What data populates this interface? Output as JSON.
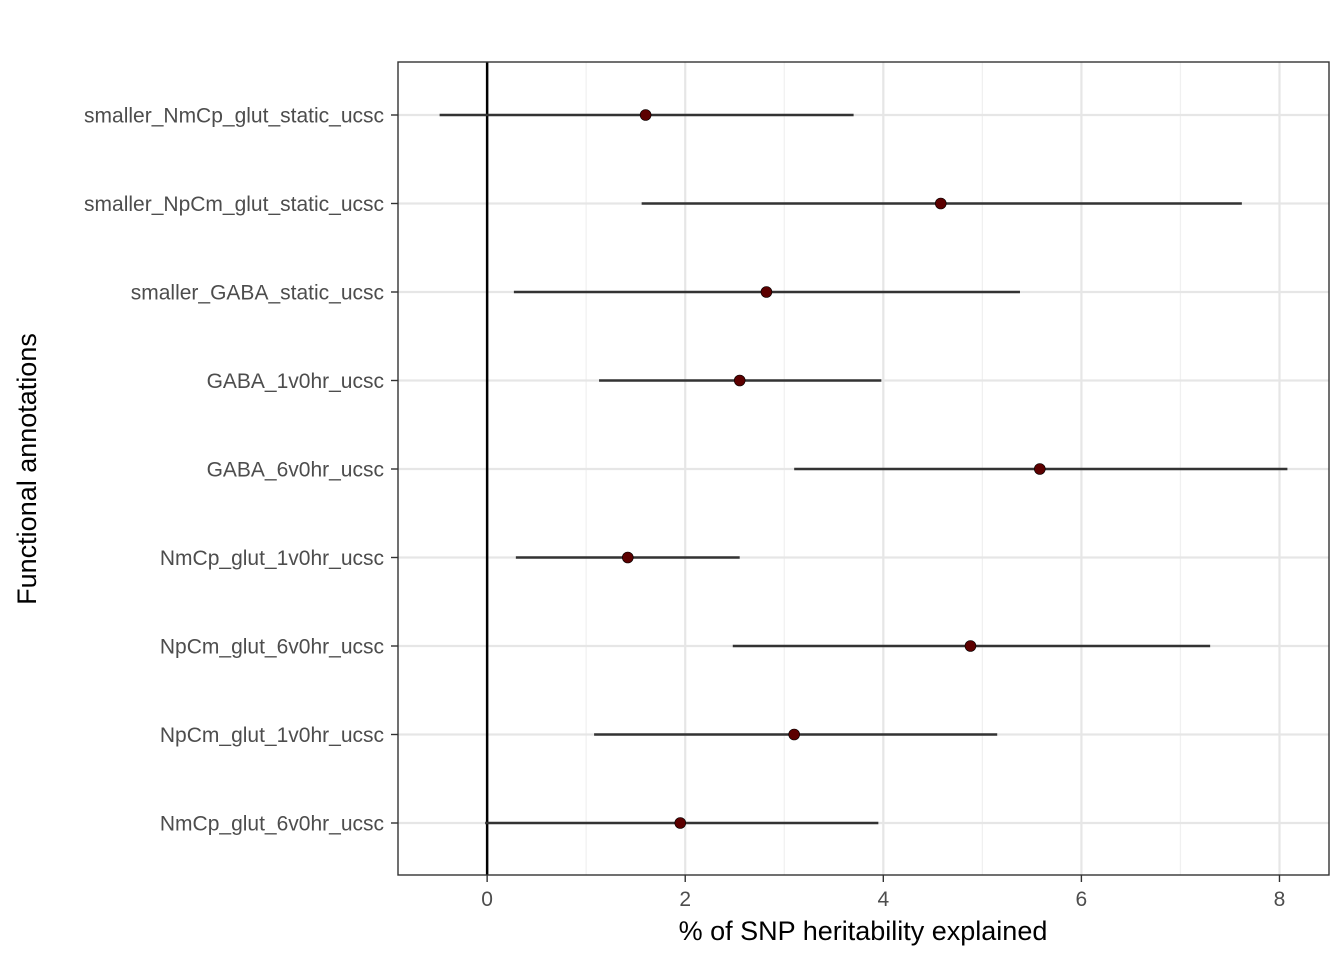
{
  "chart_data": {
    "type": "scatter",
    "xlabel": "% of SNP heritability explained",
    "ylabel": "Functional annotations",
    "xlim": [
      -0.9,
      8.5
    ],
    "xticks": [
      0,
      2,
      4,
      6,
      8
    ],
    "grid": true,
    "reference_line_x": 0,
    "point_color": "#5c0000",
    "errorbar_color": "#333333",
    "categories": [
      "smaller_NmCp_glut_static_ucsc",
      "smaller_NpCm_glut_static_ucsc",
      "smaller_GABA_static_ucsc",
      "GABA_1v0hr_ucsc",
      "GABA_6v0hr_ucsc",
      "NmCp_glut_1v0hr_ucsc",
      "NpCm_glut_6v0hr_ucsc",
      "NpCm_glut_1v0hr_ucsc",
      "NmCp_glut_6v0hr_ucsc"
    ],
    "values": [
      1.6,
      4.58,
      2.82,
      2.55,
      5.58,
      1.42,
      4.88,
      3.1,
      1.95
    ],
    "lower": [
      -0.48,
      1.56,
      0.27,
      1.13,
      3.1,
      0.29,
      2.48,
      1.08,
      -0.02
    ],
    "upper": [
      3.7,
      7.62,
      5.38,
      3.98,
      8.08,
      2.55,
      7.3,
      5.15,
      3.95
    ]
  }
}
